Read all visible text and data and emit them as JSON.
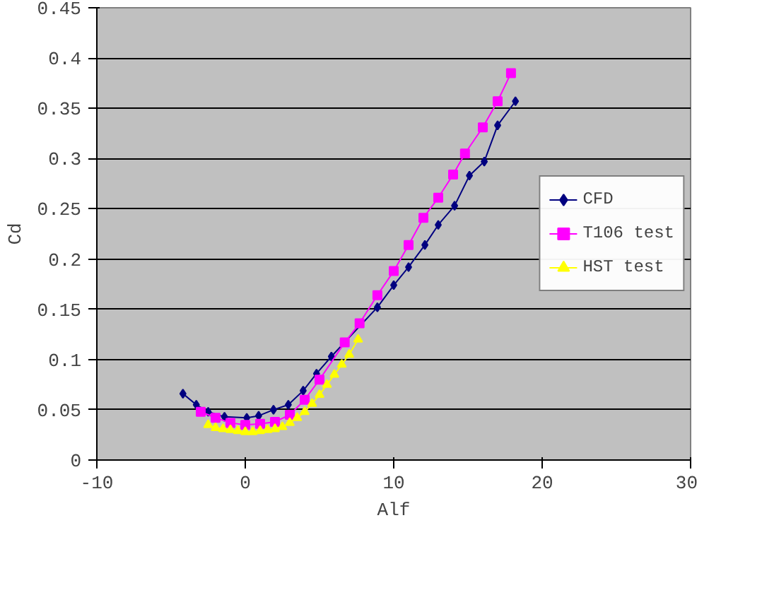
{
  "chart_data": {
    "type": "line",
    "xlabel": "Alf",
    "ylabel": "Cd",
    "xlim": [
      -10,
      30
    ],
    "xticks": [
      -10,
      0,
      10,
      20,
      30
    ],
    "ylim": [
      0,
      0.45
    ],
    "yticks": [
      0,
      0.05,
      0.1,
      0.15,
      0.2,
      0.25,
      0.3,
      0.35,
      0.4,
      0.45
    ],
    "grid": "y",
    "legend": "right",
    "series": [
      {
        "name": "CFD",
        "color": "#000080",
        "marker": "diamond",
        "x": [
          -4.2,
          -3.3,
          -2.5,
          -1.4,
          0.1,
          0.9,
          1.9,
          2.9,
          3.9,
          4.8,
          5.8,
          8.9,
          10.0,
          11.0,
          12.1,
          13.0,
          14.1,
          15.1,
          16.1,
          17.0,
          18.2
        ],
        "values": [
          0.066,
          0.055,
          0.048,
          0.043,
          0.042,
          0.044,
          0.05,
          0.055,
          0.069,
          0.086,
          0.103,
          0.152,
          0.174,
          0.192,
          0.214,
          0.234,
          0.253,
          0.283,
          0.297,
          0.333,
          0.357
        ]
      },
      {
        "name": "T106 test",
        "color": "#ff00ff",
        "marker": "square",
        "x": [
          -3,
          -2,
          -1,
          0,
          1,
          2,
          3,
          4,
          5,
          6.7,
          7.7,
          8.9,
          10.0,
          11.0,
          12.0,
          13.0,
          14.0,
          14.8,
          16.0,
          17.0,
          17.9
        ],
        "values": [
          0.048,
          0.042,
          0.037,
          0.035,
          0.036,
          0.038,
          0.045,
          0.06,
          0.08,
          0.117,
          0.136,
          0.164,
          0.188,
          0.214,
          0.241,
          0.261,
          0.284,
          0.305,
          0.331,
          0.357,
          0.385
        ]
      },
      {
        "name": "HST test",
        "color": "#ffff00",
        "marker": "triangle",
        "x": [
          -2.5,
          -2,
          -1.5,
          -1,
          -0.5,
          0,
          0.5,
          1,
          1.5,
          2,
          2.5,
          3,
          3.5,
          4,
          4.5,
          5,
          5.5,
          6,
          6.5,
          7,
          7.6
        ],
        "values": [
          0.035,
          0.032,
          0.031,
          0.03,
          0.029,
          0.028,
          0.028,
          0.029,
          0.03,
          0.031,
          0.033,
          0.037,
          0.042,
          0.048,
          0.056,
          0.065,
          0.075,
          0.085,
          0.095,
          0.105,
          0.12
        ]
      }
    ]
  }
}
